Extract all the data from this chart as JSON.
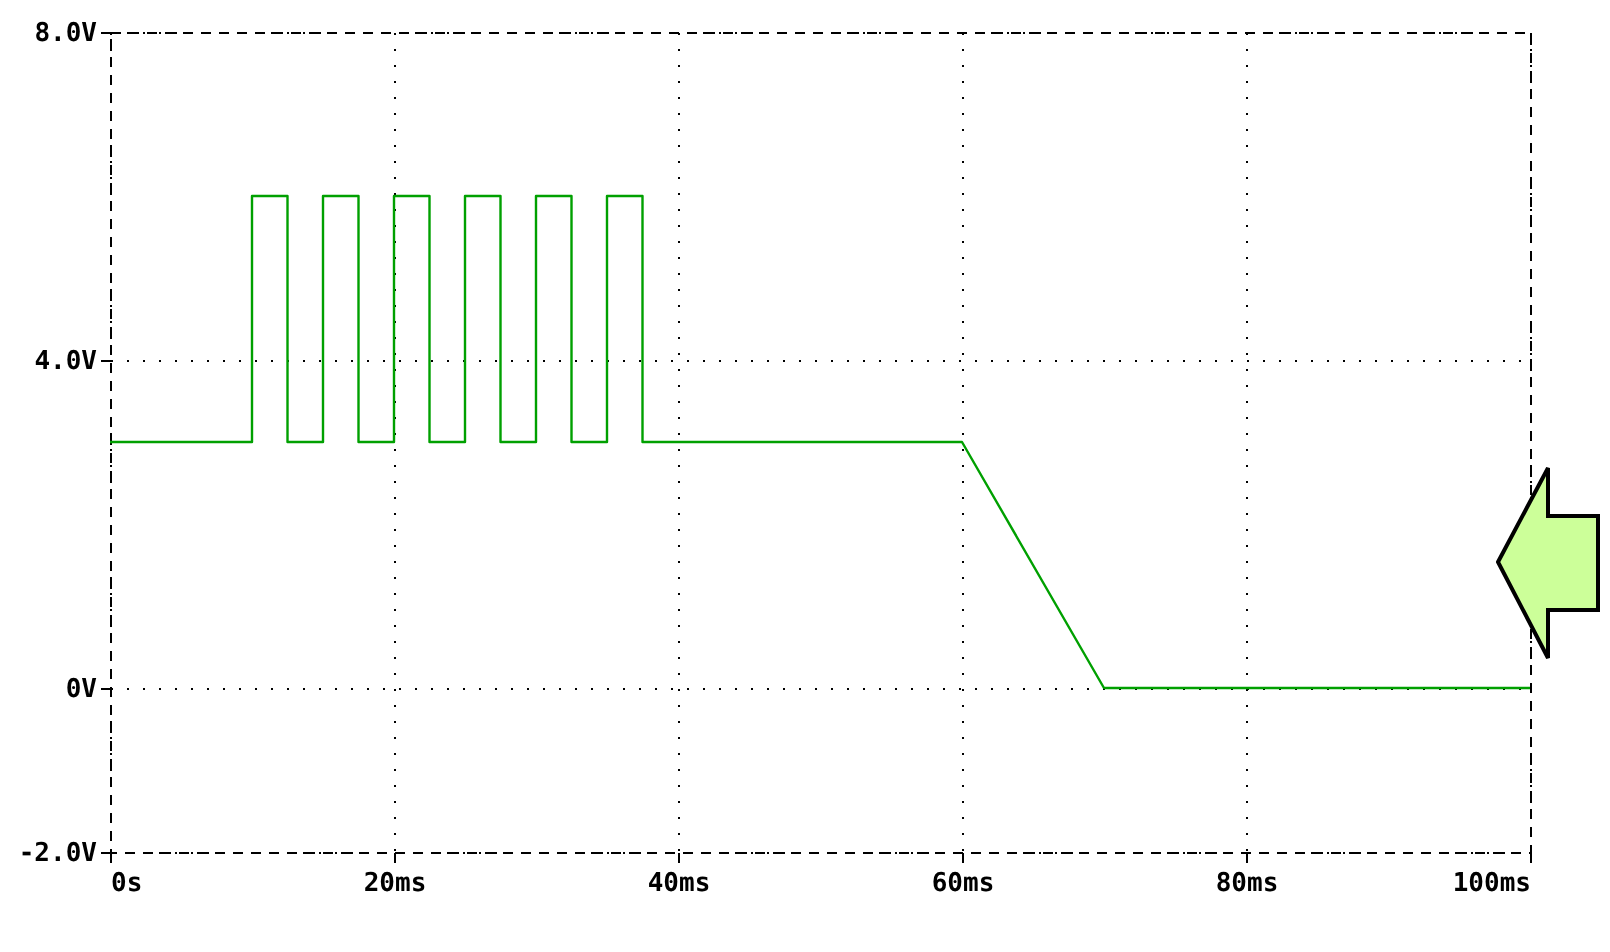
{
  "chart_data": {
    "type": "line",
    "x": [
      0,
      10,
      10,
      12.5,
      12.5,
      15,
      15,
      17.5,
      17.5,
      20,
      20,
      22.5,
      22.5,
      25,
      25,
      27.5,
      27.5,
      30,
      30,
      32.5,
      32.5,
      35,
      35,
      37.5,
      37.5,
      60,
      70,
      100
    ],
    "series": [
      {
        "color": "#00a000",
        "values": [
          3,
          3,
          6,
          6,
          3,
          3,
          6,
          6,
          3,
          3,
          6,
          6,
          3,
          3,
          6,
          6,
          3,
          3,
          6,
          6,
          3,
          3,
          6,
          6,
          3,
          3,
          0,
          0
        ]
      }
    ],
    "xlim": [
      0,
      100
    ],
    "ylim": [
      -2,
      8
    ],
    "xticks": [
      {
        "value": 0,
        "label": "0s"
      },
      {
        "value": 20,
        "label": "20ms"
      },
      {
        "value": 40,
        "label": "40ms"
      },
      {
        "value": 60,
        "label": "60ms"
      },
      {
        "value": 80,
        "label": "80ms"
      },
      {
        "value": 100,
        "label": "100ms"
      }
    ],
    "yticks": [
      {
        "value": -2,
        "label": "-2.0V"
      },
      {
        "value": 0,
        "label": "0V"
      },
      {
        "value": 4,
        "label": "4.0V"
      },
      {
        "value": 8,
        "label": "8.0V"
      }
    ],
    "grid": true,
    "line_style": "solid",
    "marker": "none",
    "legend": false
  }
}
